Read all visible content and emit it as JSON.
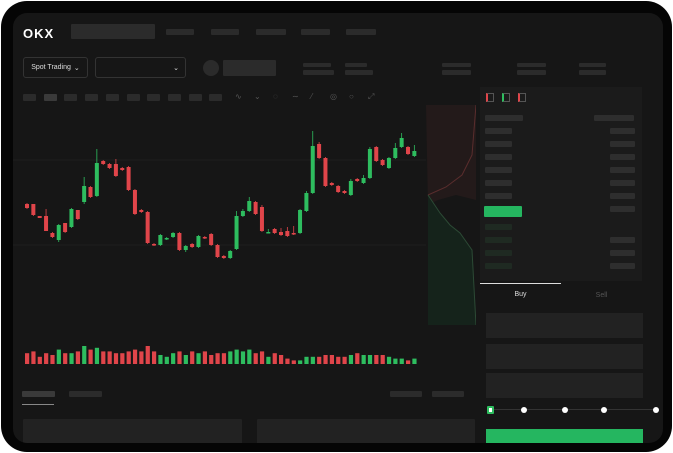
{
  "header": {
    "logo": "OKX"
  },
  "trade_bar": {
    "mode_label": "Spot Trading",
    "chevron_icon": "chevron-down-icon",
    "pair_chevron_icon": "chevron-down-icon"
  },
  "order_book": {
    "view_icons": [
      "orderbook-both-icon",
      "orderbook-bids-icon",
      "orderbook-asks-icon"
    ]
  },
  "order_form": {
    "tabs": [
      {
        "label": "Buy",
        "active": true
      },
      {
        "label": "Sell",
        "active": false
      }
    ],
    "slider_value_percent": 0,
    "submit_color": "#25b660"
  },
  "colors": {
    "up": "#2ebd5f",
    "down": "#e0454a",
    "background": "#161616"
  },
  "chart_data": {
    "type": "candlestick",
    "candles": [
      [
        67,
        63,
        68,
        62
      ],
      [
        67,
        56,
        67,
        55
      ],
      [
        55,
        53,
        55,
        53
      ],
      [
        55,
        40,
        62,
        40
      ],
      [
        38,
        34,
        39,
        33
      ],
      [
        31,
        46,
        47,
        29
      ],
      [
        48,
        39,
        48,
        38
      ],
      [
        44,
        62,
        63,
        43
      ],
      [
        61,
        52,
        61,
        51
      ],
      [
        69,
        85,
        94,
        67
      ],
      [
        84,
        74,
        85,
        73
      ],
      [
        75,
        108,
        122,
        74
      ],
      [
        110,
        107,
        111,
        106
      ],
      [
        107,
        103,
        108,
        102
      ],
      [
        107,
        95,
        112,
        94
      ],
      [
        103,
        101,
        104,
        100
      ],
      [
        104,
        81,
        105,
        80
      ],
      [
        81,
        57,
        82,
        56
      ],
      [
        61,
        59,
        62,
        58
      ],
      [
        59,
        28,
        60,
        27
      ],
      [
        27,
        26,
        28,
        25
      ],
      [
        26,
        36,
        37,
        25
      ],
      [
        32,
        33,
        34,
        31
      ],
      [
        34,
        38,
        39,
        33
      ],
      [
        38,
        21,
        39,
        20
      ],
      [
        21,
        25,
        26,
        19
      ],
      [
        27,
        24,
        28,
        23
      ],
      [
        24,
        35,
        36,
        23
      ],
      [
        34,
        33,
        35,
        32
      ],
      [
        37,
        26,
        38,
        25
      ],
      [
        26,
        14,
        27,
        13
      ],
      [
        15,
        13,
        16,
        12
      ],
      [
        13,
        20,
        21,
        12
      ],
      [
        22,
        55,
        60,
        21
      ],
      [
        55,
        60,
        62,
        54
      ],
      [
        60,
        70,
        74,
        59
      ],
      [
        69,
        57,
        70,
        56
      ],
      [
        64,
        40,
        66,
        39
      ],
      [
        39,
        39,
        42,
        38
      ],
      [
        42,
        38,
        43,
        37
      ],
      [
        39,
        36,
        43,
        35
      ],
      [
        40,
        35,
        44,
        34
      ],
      [
        38,
        37,
        45,
        36
      ],
      [
        38,
        61,
        62,
        37
      ],
      [
        60,
        78,
        80,
        59
      ],
      [
        78,
        125,
        140,
        77
      ],
      [
        127,
        113,
        129,
        112
      ],
      [
        113,
        85,
        114,
        84
      ],
      [
        88,
        86,
        89,
        85
      ],
      [
        85,
        79,
        86,
        78
      ],
      [
        80,
        78,
        81,
        77
      ],
      [
        76,
        90,
        92,
        75
      ],
      [
        92,
        90,
        93,
        89
      ],
      [
        88,
        93,
        96,
        87
      ],
      [
        93,
        122,
        124,
        92
      ],
      [
        124,
        110,
        125,
        109
      ],
      [
        111,
        106,
        112,
        105
      ],
      [
        103,
        113,
        114,
        102
      ],
      [
        113,
        123,
        128,
        112
      ],
      [
        124,
        133,
        138,
        123
      ],
      [
        124,
        117,
        125,
        116
      ],
      [
        115,
        120,
        126,
        114
      ]
    ],
    "volumes": [
      6,
      7,
      4,
      6,
      5,
      8,
      6,
      6,
      7,
      10,
      8,
      9,
      7,
      7,
      6,
      6,
      7,
      8,
      7,
      10,
      7,
      5,
      4,
      6,
      7,
      5,
      7,
      6,
      7,
      5,
      6,
      6,
      7,
      8,
      7,
      8,
      6,
      7,
      4,
      6,
      5,
      3,
      2,
      2,
      4,
      4,
      4,
      5,
      5,
      4,
      4,
      5,
      6,
      5,
      5,
      5,
      5,
      4,
      3,
      3,
      2,
      3
    ],
    "xlabel": "",
    "ylabel": "",
    "grid": true
  }
}
